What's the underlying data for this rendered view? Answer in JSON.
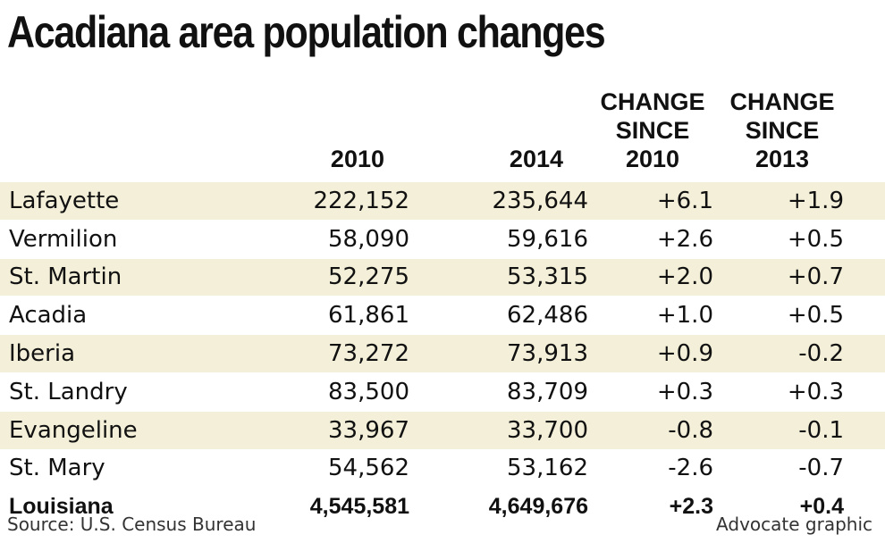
{
  "chart_data": {
    "type": "table",
    "title": "Acadiana area population changes",
    "columns": [
      "",
      "2010",
      "2014",
      "CHANGE SINCE 2010",
      "CHANGE SINCE 2013"
    ],
    "header_lines": {
      "y2010": "2010",
      "y2014": "2014",
      "ch10": [
        "CHANGE",
        "SINCE",
        "2010"
      ],
      "ch13": [
        "CHANGE",
        "SINCE",
        "2013"
      ]
    },
    "rows": [
      {
        "name": "Lafayette",
        "v2010": "222,152",
        "v2014": "235,644",
        "ch10": "+6.1",
        "ch13": "+1.9"
      },
      {
        "name": "Vermilion",
        "v2010": "58,090",
        "v2014": "59,616",
        "ch10": "+2.6",
        "ch13": "+0.5"
      },
      {
        "name": "St. Martin",
        "v2010": "52,275",
        "v2014": "53,315",
        "ch10": "+2.0",
        "ch13": "+0.7"
      },
      {
        "name": "Acadia",
        "v2010": "61,861",
        "v2014": "62,486",
        "ch10": "+1.0",
        "ch13": "+0.5"
      },
      {
        "name": "Iberia",
        "v2010": "73,272",
        "v2014": "73,913",
        "ch10": "+0.9",
        "ch13": "-0.2"
      },
      {
        "name": "St. Landry",
        "v2010": "83,500",
        "v2014": "83,709",
        "ch10": "+0.3",
        "ch13": "+0.3"
      },
      {
        "name": "Evangeline",
        "v2010": "33,967",
        "v2014": "33,700",
        "ch10": "-0.8",
        "ch13": "-0.1"
      },
      {
        "name": "St. Mary",
        "v2010": "54,562",
        "v2014": "53,162",
        "ch10": "-2.6",
        "ch13": "-0.7"
      }
    ],
    "total": {
      "name": "Louisiana",
      "v2010": "4,545,581",
      "v2014": "4,649,676",
      "ch10": "+2.3",
      "ch13": "+0.4"
    },
    "source": "Source: U.S. Census Bureau",
    "credit": "Advocate graphic",
    "colors": {
      "shaded_row": "#f3efd8",
      "text": "#111111",
      "background": "#ffffff"
    }
  }
}
